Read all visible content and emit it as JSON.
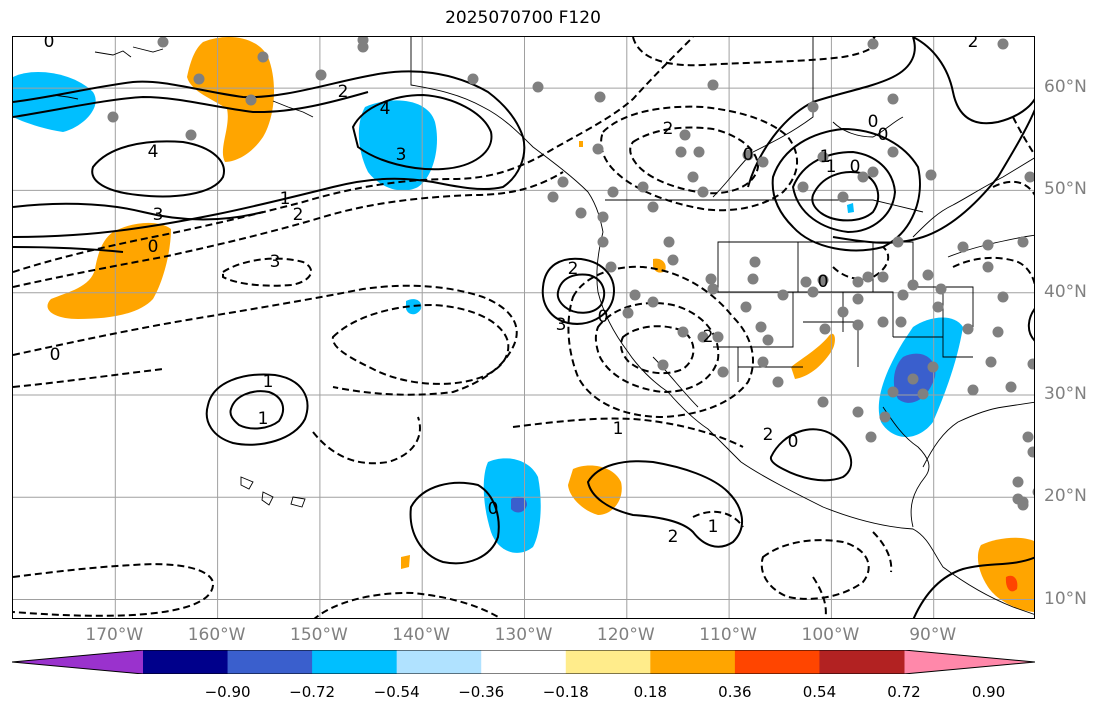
{
  "title": "2025070700 F120",
  "map": {
    "projection": "lat-lon",
    "extent_lon": [
      -180,
      -80
    ],
    "extent_lat": [
      8,
      65
    ],
    "lon_labels": [
      "170°W",
      "160°W",
      "150°W",
      "140°W",
      "130°W",
      "120°W",
      "110°W",
      "100°W",
      "90°W"
    ],
    "lat_labels": [
      "60°N",
      "50°N",
      "40°N",
      "30°N",
      "20°N",
      "10°N"
    ],
    "grid": true,
    "gridline_color": "#a0a0a0",
    "contour_color": "#000000",
    "station_color": "#808080",
    "contour_labels": [
      "0",
      "2",
      "4",
      "3",
      "4",
      "3",
      "0",
      "1",
      "2",
      "3",
      "2",
      "0",
      "3",
      "2",
      "1",
      "2",
      "0",
      "0",
      "1",
      "2",
      "2",
      "0",
      "1",
      "1",
      "0",
      "0",
      "0",
      "2",
      "0",
      "0",
      "1",
      "1"
    ]
  },
  "colorbar": {
    "colors": [
      "#9a32cd",
      "#00008b",
      "#3a5fcd",
      "#00bfff",
      "#b0e2ff",
      "#ffffff",
      "#ffec8b",
      "#ffa500",
      "#ff4500",
      "#b22222",
      "#ff88aa"
    ],
    "tick_labels": [
      "−0.90",
      "−0.72",
      "−0.54",
      "−0.36",
      "−0.18",
      "0.18",
      "0.36",
      "0.54",
      "0.72",
      "0.90"
    ],
    "extend": "both"
  }
}
